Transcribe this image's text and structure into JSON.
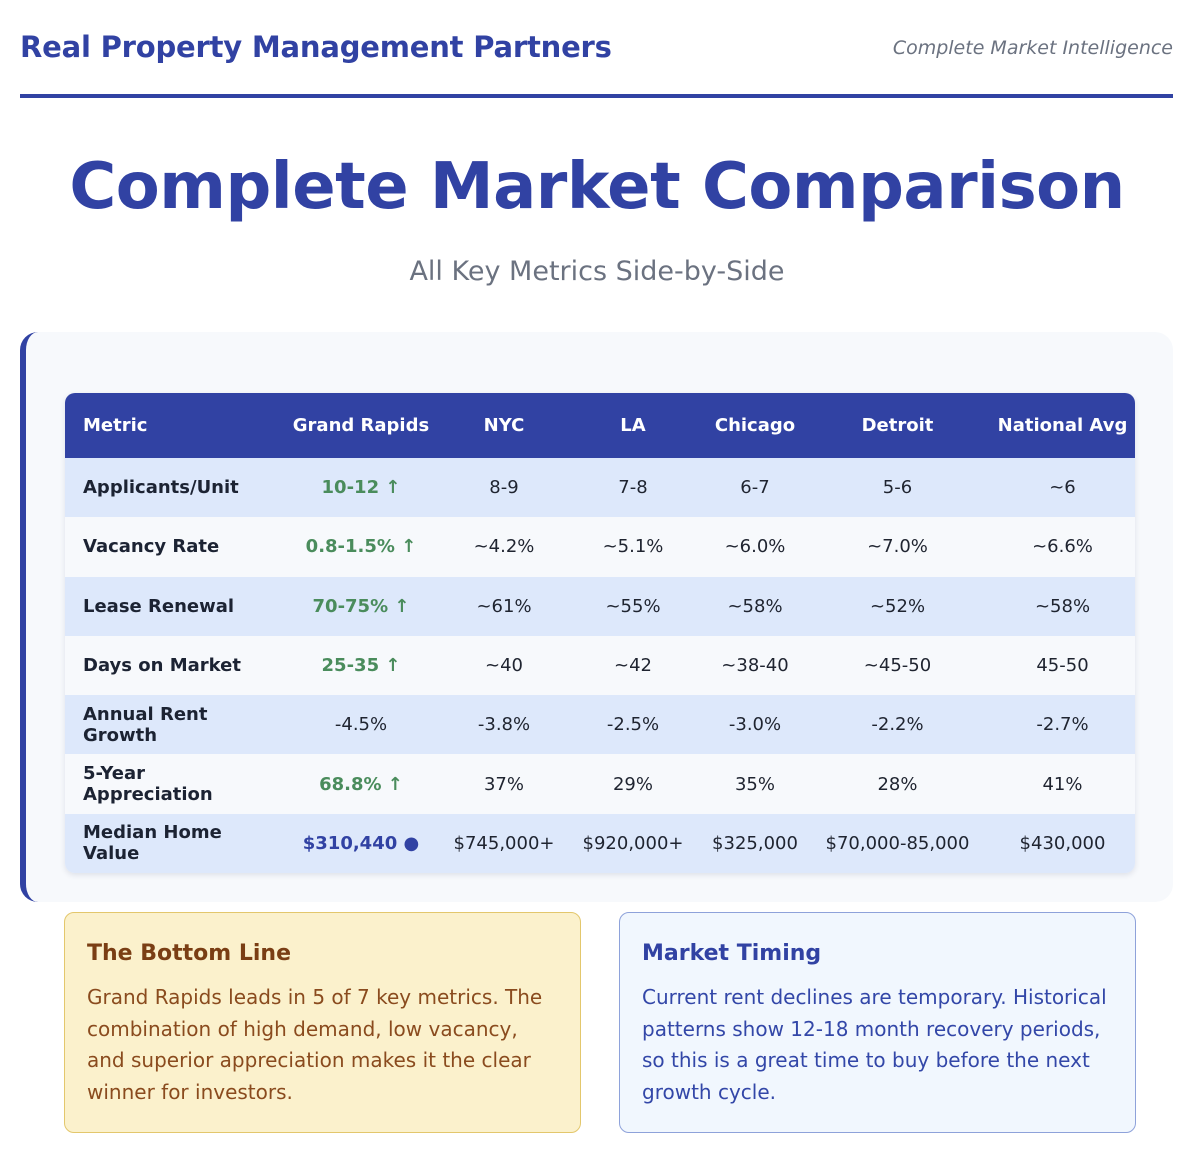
{
  "header": {
    "brand": "Real Property Management Partners",
    "tagline": "Complete Market Intelligence"
  },
  "title": "Complete Market Comparison",
  "subtitle": "All Key Metrics Side-by-Side",
  "table": {
    "columns": [
      "Metric",
      "Grand Rapids",
      "NYC",
      "LA",
      "Chicago",
      "Detroit",
      "National Avg"
    ],
    "rows": [
      {
        "metric": "Applicants/Unit",
        "grand_rapids": "10-12 ↑",
        "nyc": "8-9",
        "la": "7-8",
        "chicago": "6-7",
        "detroit": "5-6",
        "national": "~6"
      },
      {
        "metric": "Vacancy Rate",
        "grand_rapids": "0.8-1.5% ↑",
        "nyc": "~4.2%",
        "la": "~5.1%",
        "chicago": "~6.0%",
        "detroit": "~7.0%",
        "national": "~6.6%"
      },
      {
        "metric": "Lease Renewal",
        "grand_rapids": "70-75% ↑",
        "nyc": "~61%",
        "la": "~55%",
        "chicago": "~58%",
        "detroit": "~52%",
        "national": "~58%"
      },
      {
        "metric": "Days on Market",
        "grand_rapids": "25-35 ↑",
        "nyc": "~40",
        "la": "~42",
        "chicago": "~38-40",
        "detroit": "~45-50",
        "national": "45-50"
      },
      {
        "metric": "Annual Rent Growth",
        "grand_rapids": "-4.5%",
        "nyc": "-3.8%",
        "la": "-2.5%",
        "chicago": "-3.0%",
        "detroit": "-2.2%",
        "national": "-2.7%"
      },
      {
        "metric": "5-Year Appreciation",
        "grand_rapids": "68.8% ↑",
        "nyc": "37%",
        "la": "29%",
        "chicago": "35%",
        "detroit": "28%",
        "national": "41%"
      },
      {
        "metric": "Median Home Value",
        "grand_rapids": "$310,440 ●",
        "nyc": "$745,000+",
        "la": "$920,000+",
        "chicago": "$325,000",
        "detroit": "$70,000-85,000",
        "national": "$430,000"
      }
    ]
  },
  "cards": {
    "bottom_line": {
      "title": "The Bottom Line",
      "text": "Grand Rapids leads in 5 of 7 key metrics. The combination of high demand, low vacancy, and superior appreciation makes it the clear winner for investors."
    },
    "market_timing": {
      "title": "Market Timing",
      "text": "Current rent declines are temporary. Historical patterns show 12-18 month recovery periods, so this is a great time to buy before the next growth cycle."
    }
  },
  "colors": {
    "brand_blue": "#3142a3",
    "positive_green": "#4a8c5c",
    "row_tint": "#dde8fb",
    "bottom_card_bg": "#fbf1cc",
    "timing_card_bg": "#f1f7fe"
  }
}
